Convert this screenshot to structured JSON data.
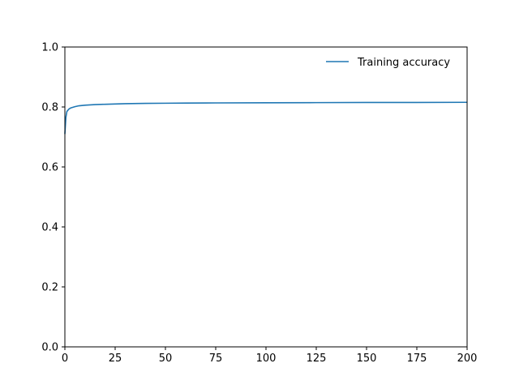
{
  "chart_data": {
    "type": "line",
    "title": "",
    "xlabel": "",
    "ylabel": "",
    "xlim": [
      0,
      200
    ],
    "ylim": [
      0.0,
      1.0
    ],
    "x_ticks": [
      0,
      25,
      50,
      75,
      100,
      125,
      150,
      175,
      200
    ],
    "x_tick_labels": [
      "0",
      "25",
      "50",
      "75",
      "100",
      "125",
      "150",
      "175",
      "200"
    ],
    "y_ticks": [
      0.0,
      0.2,
      0.4,
      0.6,
      0.8,
      1.0
    ],
    "y_tick_labels": [
      "0.0",
      "0.2",
      "0.4",
      "0.6",
      "0.8",
      "1.0"
    ],
    "grid": false,
    "legend_position": "top-right",
    "legend_frame": false,
    "series": [
      {
        "name": "Training accuracy",
        "color": "#1f77b4",
        "x": [
          0,
          0.5,
          1,
          2,
          3,
          5,
          7,
          10,
          15,
          20,
          25,
          30,
          40,
          50,
          60,
          75,
          100,
          125,
          150,
          175,
          200
        ],
        "y": [
          0.71,
          0.765,
          0.785,
          0.793,
          0.797,
          0.801,
          0.804,
          0.806,
          0.808,
          0.809,
          0.81,
          0.811,
          0.812,
          0.8125,
          0.813,
          0.8135,
          0.814,
          0.8145,
          0.815,
          0.815,
          0.8155
        ]
      }
    ]
  }
}
